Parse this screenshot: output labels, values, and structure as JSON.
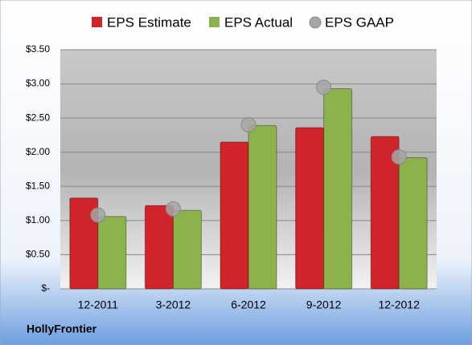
{
  "chart_data": {
    "type": "bar",
    "categories": [
      "12-2011",
      "3-2012",
      "6-2012",
      "9-2012",
      "12-2012"
    ],
    "series": [
      {
        "name": "EPS Estimate",
        "type": "bar",
        "color": "#d0232a",
        "values": [
          1.33,
          1.22,
          2.15,
          2.36,
          2.23
        ]
      },
      {
        "name": "EPS Actual",
        "type": "bar",
        "color": "#8db24c",
        "values": [
          1.06,
          1.15,
          2.39,
          2.93,
          1.92
        ]
      },
      {
        "name": "EPS GAAP",
        "type": "scatter",
        "color": "#a6a6a6",
        "values": [
          1.08,
          1.17,
          2.4,
          2.95,
          1.93
        ]
      }
    ],
    "ylim": [
      0,
      3.5
    ],
    "yticks": [
      {
        "value": 0,
        "label": "$-"
      },
      {
        "value": 0.5,
        "label": "$0.50"
      },
      {
        "value": 1,
        "label": "$1.00"
      },
      {
        "value": 1.5,
        "label": "$1.50"
      },
      {
        "value": 2,
        "label": "$2.00"
      },
      {
        "value": 2.5,
        "label": "$2.50"
      },
      {
        "value": 3,
        "label": "$3.00"
      },
      {
        "value": 3.5,
        "label": "$3.50"
      }
    ],
    "grid": true,
    "legend": "top",
    "caption": "HollyFrontier"
  }
}
